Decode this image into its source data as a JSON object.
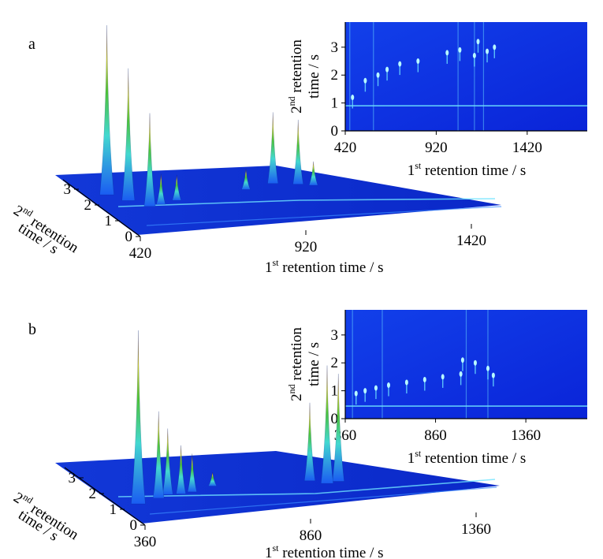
{
  "figure": {
    "colors": {
      "background": "#ffffff",
      "axis": "#000000",
      "heat_low": "#0a1fe0",
      "heat_mid": "#1a5cf2",
      "ridge": "#6fe4ff",
      "peak_cyan": "#43d8d0",
      "peak_green": "#4cc23a",
      "peak_yellow": "#d6cf2e",
      "peak_red": "#9a2a14"
    }
  },
  "chart_data": [
    {
      "type": "heatmap",
      "panel_label": "a",
      "view": "2D contour plot",
      "x_axis": {
        "ticks": [
          420,
          920,
          1420
        ],
        "range": [
          420,
          1750
        ],
        "label_main": "1",
        "label_sup": "st",
        "label_rest": " retention time / s"
      },
      "y_axis": {
        "ticks": [
          0,
          1,
          2,
          3
        ],
        "range": [
          0,
          3.9
        ],
        "label_main": "2",
        "label_sup": "nd",
        "label_rest": " retention",
        "label_line2": "time / s"
      },
      "baseline_band_y": 0.9,
      "vertical_streaks": [
        445,
        575,
        1040,
        1130,
        1180
      ],
      "peaks": [
        {
          "x": 460,
          "y": 1.2
        },
        {
          "x": 530,
          "y": 1.8
        },
        {
          "x": 600,
          "y": 2.0
        },
        {
          "x": 650,
          "y": 2.2
        },
        {
          "x": 720,
          "y": 2.4
        },
        {
          "x": 820,
          "y": 2.5
        },
        {
          "x": 980,
          "y": 2.8
        },
        {
          "x": 1050,
          "y": 2.9
        },
        {
          "x": 1130,
          "y": 2.7
        },
        {
          "x": 1150,
          "y": 3.2
        },
        {
          "x": 1200,
          "y": 2.85
        },
        {
          "x": 1240,
          "y": 3.0
        }
      ]
    },
    {
      "type": "surface3d",
      "panel_label": "a",
      "x_axis": {
        "ticks": [
          420,
          920,
          1420
        ],
        "label_main": "1",
        "label_sup": "st",
        "label_rest": " retention time / s"
      },
      "y_axis": {
        "ticks": [
          0,
          1,
          2,
          3
        ],
        "label_main": "2",
        "label_sup": "nd",
        "label_rest": " retention",
        "label_line2": "time / s"
      },
      "peaks": [
        {
          "x": 480,
          "y": 2.6,
          "height": 1.0
        },
        {
          "x": 520,
          "y": 2.2,
          "height": 0.78
        },
        {
          "x": 560,
          "y": 1.8,
          "height": 0.55
        },
        {
          "x": 600,
          "y": 1.9,
          "height": 0.18
        },
        {
          "x": 660,
          "y": 2.1,
          "height": 0.15
        },
        {
          "x": 900,
          "y": 2.6,
          "height": 0.12
        },
        {
          "x": 1000,
          "y": 2.9,
          "height": 0.42
        },
        {
          "x": 1070,
          "y": 2.8,
          "height": 0.38
        },
        {
          "x": 1110,
          "y": 2.7,
          "height": 0.14
        }
      ]
    },
    {
      "type": "heatmap",
      "panel_label": "b",
      "view": "2D contour plot",
      "x_axis": {
        "ticks": [
          360,
          860,
          1360
        ],
        "range": [
          360,
          1700
        ],
        "label_main": "1",
        "label_sup": "st",
        "label_rest": " retention time / s"
      },
      "y_axis": {
        "ticks": [
          0,
          1,
          2,
          3
        ],
        "range": [
          0,
          3.9
        ],
        "label_main": "2",
        "label_sup": "nd",
        "label_rest": " retention",
        "label_line2": "time / s"
      },
      "baseline_band_y": 0.45,
      "vertical_streaks": [
        400,
        565,
        1030,
        1150
      ],
      "peaks": [
        {
          "x": 420,
          "y": 0.9
        },
        {
          "x": 470,
          "y": 1.0
        },
        {
          "x": 530,
          "y": 1.1
        },
        {
          "x": 600,
          "y": 1.2
        },
        {
          "x": 700,
          "y": 1.3
        },
        {
          "x": 800,
          "y": 1.4
        },
        {
          "x": 900,
          "y": 1.5
        },
        {
          "x": 1000,
          "y": 1.6
        },
        {
          "x": 1010,
          "y": 2.1
        },
        {
          "x": 1080,
          "y": 2.0
        },
        {
          "x": 1150,
          "y": 1.8
        },
        {
          "x": 1180,
          "y": 1.55
        }
      ]
    },
    {
      "type": "surface3d",
      "panel_label": "b",
      "x_axis": {
        "ticks": [
          360,
          860,
          1360
        ],
        "label_main": "1",
        "label_sup": "st",
        "label_rest": " retention time / s"
      },
      "y_axis": {
        "ticks": [
          0,
          1,
          2,
          3
        ],
        "label_main": "2",
        "label_sup": "nd",
        "label_rest": " retention",
        "label_line2": "time / s"
      },
      "peaks": [
        {
          "x": 420,
          "y": 1.3,
          "height": 1.0
        },
        {
          "x": 500,
          "y": 1.6,
          "height": 0.5
        },
        {
          "x": 540,
          "y": 1.8,
          "height": 0.38
        },
        {
          "x": 580,
          "y": 1.8,
          "height": 0.28
        },
        {
          "x": 620,
          "y": 1.9,
          "height": 0.22
        },
        {
          "x": 700,
          "y": 2.2,
          "height": 0.08
        },
        {
          "x": 1000,
          "y": 2.3,
          "height": 0.45
        },
        {
          "x": 1040,
          "y": 2.1,
          "height": 0.68
        },
        {
          "x": 1080,
          "y": 2.2,
          "height": 0.62
        }
      ]
    }
  ]
}
